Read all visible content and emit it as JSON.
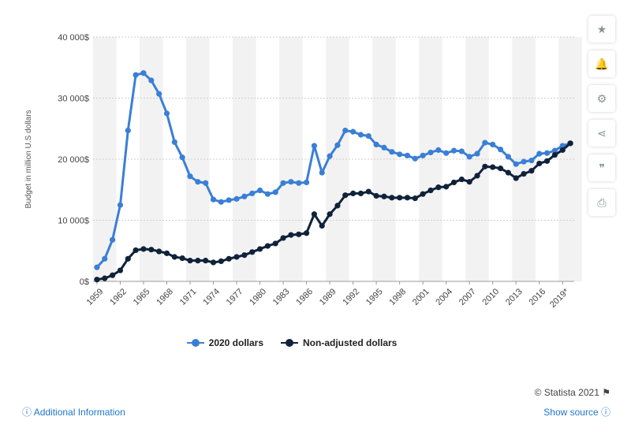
{
  "chart_data": {
    "type": "line",
    "title": "",
    "xlabel": "",
    "ylabel": "Budget in million U.S dollars",
    "ylim": [
      0,
      40000
    ],
    "yticks": [
      0,
      10000,
      20000,
      30000,
      40000
    ],
    "ytick_labels": [
      "0$",
      "10 000$",
      "20 000$",
      "30 000$",
      "40 000$"
    ],
    "x": [
      "1959",
      "1960",
      "1961",
      "1962",
      "1963",
      "1964",
      "1965",
      "1966",
      "1967",
      "1968",
      "1969",
      "1970",
      "1971",
      "1972",
      "1973",
      "1974",
      "1975",
      "1976",
      "1977",
      "1978",
      "1979",
      "1980",
      "1981",
      "1982",
      "1983",
      "1984",
      "1985",
      "1986",
      "1987",
      "1988",
      "1989",
      "1990",
      "1991",
      "1992",
      "1993",
      "1994",
      "1995",
      "1996",
      "1997",
      "1998",
      "1999",
      "2000",
      "2001",
      "2002",
      "2003",
      "2004",
      "2005",
      "2006",
      "2007",
      "2008",
      "2009",
      "2010",
      "2011",
      "2012",
      "2013",
      "2014",
      "2015",
      "2016",
      "2017",
      "2018",
      "2019",
      "2020"
    ],
    "xtick_labels": [
      "1959",
      "1962",
      "1965",
      "1968",
      "1971",
      "1974",
      "1977",
      "1980",
      "1983",
      "1986",
      "1989",
      "1992",
      "1995",
      "1998",
      "2001",
      "2004",
      "2007",
      "2010",
      "2013",
      "2016",
      "2019*"
    ],
    "grid": true,
    "legend_position": "bottom",
    "series": [
      {
        "name": "2020 dollars",
        "color": "#3a7fd6",
        "values": [
          2300,
          3700,
          6800,
          12500,
          24700,
          33800,
          34100,
          32900,
          30700,
          27500,
          22800,
          20300,
          17200,
          16300,
          16100,
          13400,
          13000,
          13300,
          13500,
          13900,
          14400,
          14900,
          14300,
          14600,
          16100,
          16300,
          16100,
          16200,
          22200,
          17800,
          20500,
          22300,
          24700,
          24500,
          24000,
          23800,
          22400,
          21900,
          21200,
          20800,
          20600,
          20100,
          20600,
          21100,
          21500,
          21000,
          21400,
          21300,
          20400,
          20900,
          22700,
          22400,
          21600,
          20400,
          19200,
          19600,
          19800,
          20900,
          21000,
          21400,
          22200,
          22600
        ]
      },
      {
        "name": "Non-adjusted dollars",
        "color": "#10223a",
        "values": [
          300,
          500,
          1000,
          1800,
          3700,
          5100,
          5300,
          5200,
          4900,
          4600,
          4000,
          3800,
          3400,
          3400,
          3400,
          3100,
          3300,
          3700,
          4000,
          4300,
          4800,
          5300,
          5800,
          6200,
          7100,
          7600,
          7700,
          7900,
          11000,
          9100,
          11000,
          12400,
          14100,
          14400,
          14400,
          14700,
          14000,
          13900,
          13700,
          13700,
          13700,
          13600,
          14300,
          14900,
          15400,
          15500,
          16200,
          16700,
          16300,
          17300,
          18800,
          18700,
          18500,
          17800,
          16900,
          17600,
          18100,
          19300,
          19700,
          20700,
          21500,
          22600
        ]
      }
    ]
  },
  "legend": [
    {
      "label": "2020 dollars",
      "color": "#3a7fd6"
    },
    {
      "label": "Non-adjusted dollars",
      "color": "#10223a"
    }
  ],
  "toolbar": [
    {
      "icon": "star-icon",
      "glyph": "★"
    },
    {
      "icon": "bell-icon",
      "glyph": "🔔"
    },
    {
      "icon": "gear-icon",
      "glyph": "⚙"
    },
    {
      "icon": "share-icon",
      "glyph": "⋖"
    },
    {
      "icon": "quote-icon",
      "glyph": "❞"
    },
    {
      "icon": "print-icon",
      "glyph": "⎙"
    }
  ],
  "footer": {
    "credit": "© Statista 2021",
    "additional_info": "Additional Information",
    "show_source": "Show source"
  }
}
